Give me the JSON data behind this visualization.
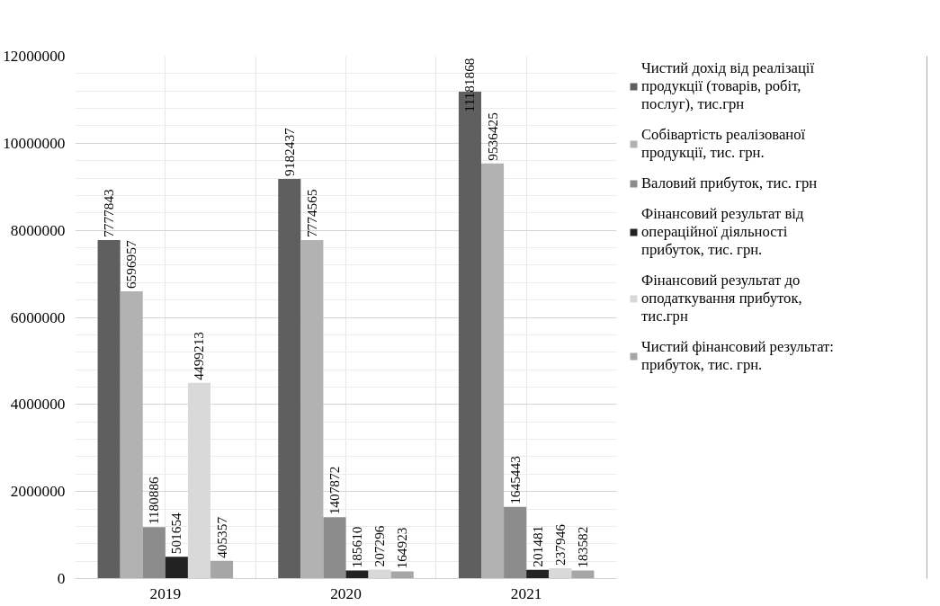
{
  "chart_data": {
    "type": "bar",
    "categories": [
      "2019",
      "2020",
      "2021"
    ],
    "series": [
      {
        "name": "Чистий дохід від реалізації продукції (товарів, робіт, послуг), тис.грн",
        "color": "#5f5f5f",
        "values": [
          7777843,
          9182437,
          11181868
        ]
      },
      {
        "name": "Собівартість реалізованої продукції, тис. грн.",
        "color": "#b2b2b2",
        "values": [
          6596957,
          7774565,
          9536425
        ]
      },
      {
        "name": "Валовий прибуток, тис. грн",
        "color": "#8c8c8c",
        "values": [
          1180886,
          1407872,
          1645443
        ]
      },
      {
        "name": "Фінансовий результат від операційної діяльності прибуток, тис. грн.",
        "color": "#222222",
        "values": [
          501654,
          185610,
          201481
        ]
      },
      {
        "name": "Фінансовий результат до оподаткування прибуток, тис.грн",
        "color": "#d9d9d9",
        "values": [
          4499213,
          207296,
          237946
        ]
      },
      {
        "name": "Чистий фінансовий результат: прибуток, тис. грн.",
        "color": "#a6a6a6",
        "values": [
          405357,
          164923,
          183582
        ]
      }
    ],
    "ylim": [
      0,
      12000000
    ],
    "yticks": [
      0,
      2000000,
      4000000,
      6000000,
      8000000,
      10000000,
      12000000
    ],
    "grid": true,
    "legend": "right",
    "data_labels": true
  }
}
